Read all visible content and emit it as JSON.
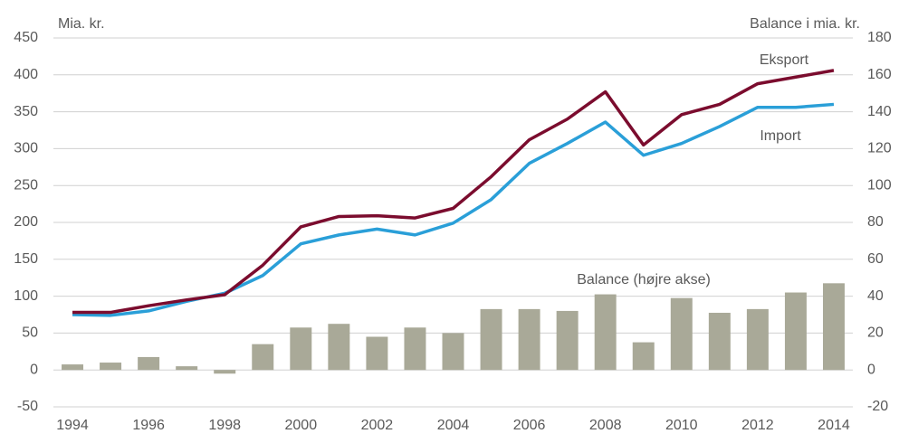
{
  "chart_data": {
    "type": "combo",
    "ylabel": "Mia. kr.",
    "y2label": "Balance i mia. kr.",
    "x": [
      1994,
      1995,
      1996,
      1997,
      1998,
      1999,
      2000,
      2001,
      2002,
      2003,
      2004,
      2005,
      2006,
      2007,
      2008,
      2009,
      2010,
      2011,
      2012,
      2013,
      2014
    ],
    "series": [
      {
        "name": "Balance (højre akse)",
        "type": "bar",
        "axis": "y2",
        "color": "#a9a998",
        "values": [
          3,
          4,
          7,
          2,
          -2,
          14,
          23,
          25,
          18,
          23,
          20,
          33,
          33,
          32,
          41,
          15,
          39,
          31,
          33,
          42,
          47
        ]
      },
      {
        "name": "Import",
        "type": "line",
        "color": "#2a9fd8",
        "values": [
          75,
          74,
          80,
          93,
          104,
          128,
          171,
          183,
          191,
          183,
          199,
          231,
          280,
          307,
          336,
          291,
          307,
          330,
          356,
          356,
          360
        ]
      },
      {
        "name": "Eksport",
        "type": "line",
        "color": "#7b0c2e",
        "values": [
          78,
          78,
          87,
          95,
          102,
          142,
          194,
          208,
          209,
          206,
          219,
          262,
          312,
          340,
          377,
          305,
          346,
          360,
          388,
          397,
          406
        ]
      }
    ],
    "xlim": [
      1993.5,
      2014.5
    ],
    "xticks": [
      1994,
      1996,
      1998,
      2000,
      2002,
      2004,
      2006,
      2008,
      2010,
      2012,
      2014
    ],
    "ylim": [
      -50,
      450
    ],
    "yticks": [
      -50,
      0,
      50,
      100,
      150,
      200,
      250,
      300,
      350,
      400,
      450
    ],
    "y2lim": [
      -20,
      180
    ],
    "y2ticks": [
      -20,
      0,
      20,
      40,
      60,
      80,
      100,
      120,
      140,
      160,
      180
    ],
    "grid": true
  }
}
